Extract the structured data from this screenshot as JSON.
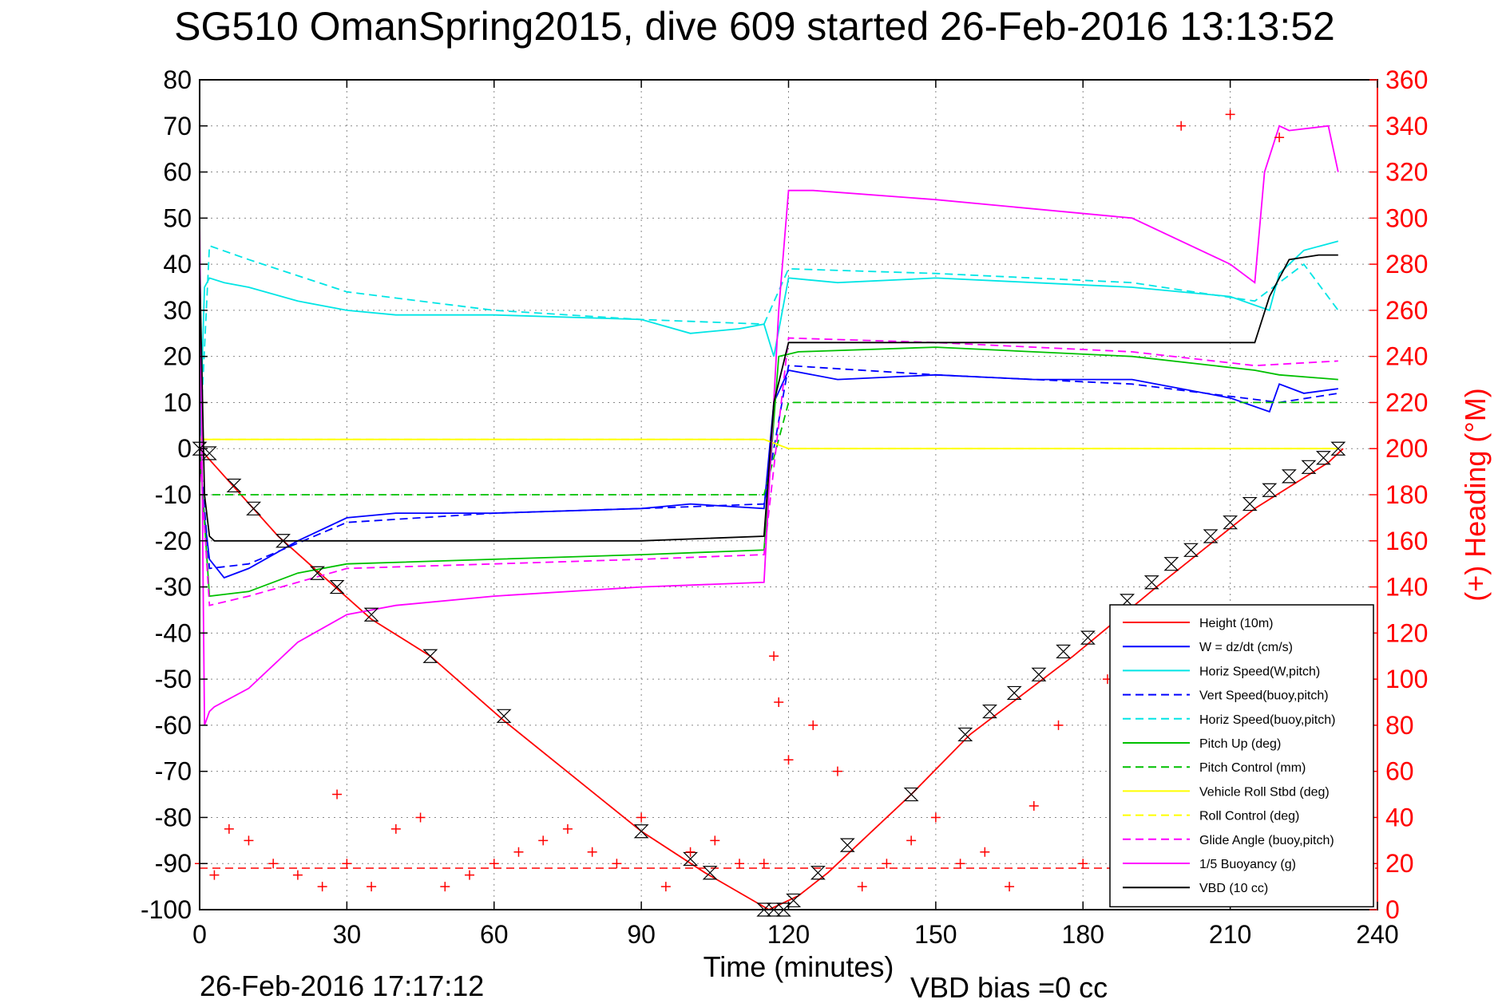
{
  "chart_data": {
    "type": "line",
    "title": "SG510 OmanSpring2015, dive 609 started 26-Feb-2016 13:13:52",
    "xlabel": "Time (minutes)",
    "ylabel_right": "(+) Heading (°M)",
    "xlim": [
      0,
      240
    ],
    "ylim": [
      -100,
      80
    ],
    "ylim_right": [
      0,
      360
    ],
    "xticks": [
      "0",
      "30",
      "60",
      "90",
      "120",
      "150",
      "180",
      "210",
      "240"
    ],
    "yticks_left": [
      "80",
      "70",
      "60",
      "50",
      "40",
      "30",
      "20",
      "10",
      "0",
      "-10",
      "-20",
      "-30",
      "-40",
      "-50",
      "-60",
      "-70",
      "-80",
      "-90",
      "-100"
    ],
    "yticks_right": [
      "360",
      "340",
      "320",
      "300",
      "280",
      "260",
      "240",
      "220",
      "200",
      "180",
      "160",
      "140",
      "120",
      "100",
      "80",
      "60",
      "40",
      "20",
      "0"
    ],
    "grid": true,
    "legend_position": "bottom-right",
    "footer_timestamp": "26-Feb-2016 17:17:12",
    "footer_note": "VBD bias =0 cc",
    "series": [
      {
        "name": "Height (10m)",
        "color": "#ff0000",
        "style": "solid",
        "x": [
          0,
          16,
          35,
          47,
          62,
          90,
          103,
          116,
          118,
          122,
          128,
          145,
          157,
          178,
          195,
          215,
          230,
          233
        ],
        "y": [
          0,
          -19,
          -37,
          -45,
          -59,
          -83,
          -92,
          -100,
          -99,
          -97,
          -92,
          -75,
          -62,
          -45,
          -30,
          -13,
          -3,
          0
        ]
      },
      {
        "name": "W = dz/dt (cm/s)",
        "color": "#0000ff",
        "style": "solid",
        "x": [
          0,
          1,
          2,
          5,
          10,
          20,
          30,
          40,
          60,
          90,
          100,
          115,
          117,
          120,
          130,
          150,
          170,
          190,
          210,
          218,
          220,
          225,
          232
        ],
        "y": [
          0,
          -15,
          -24,
          -28,
          -26,
          -20,
          -15,
          -14,
          -14,
          -13,
          -12,
          -13,
          10,
          17,
          15,
          16,
          15,
          15,
          11,
          8,
          14,
          12,
          13
        ]
      },
      {
        "name": "Horiz Speed(W,pitch)",
        "color": "#00e5e5",
        "style": "solid",
        "x": [
          0,
          1,
          2,
          5,
          10,
          20,
          30,
          40,
          60,
          90,
          100,
          110,
          115,
          117,
          120,
          130,
          150,
          170,
          190,
          210,
          218,
          220,
          225,
          232
        ],
        "y": [
          0,
          35,
          37,
          36,
          35,
          32,
          30,
          29,
          29,
          28,
          25,
          26,
          27,
          20,
          37,
          36,
          37,
          36,
          35,
          33,
          30,
          38,
          43,
          45
        ]
      },
      {
        "name": "Vert Speed(buoy,pitch)",
        "color": "#0000ff",
        "style": "dashed",
        "x": [
          0,
          2,
          10,
          30,
          60,
          90,
          115,
          120,
          150,
          190,
          220,
          232
        ],
        "y": [
          0,
          -26,
          -25,
          -16,
          -14,
          -13,
          -12,
          18,
          16,
          14,
          10,
          12
        ]
      },
      {
        "name": "Horiz Speed(buoy,pitch)",
        "color": "#00e5e5",
        "style": "dashed",
        "x": [
          0,
          2,
          10,
          30,
          60,
          90,
          115,
          120,
          150,
          190,
          215,
          225,
          232
        ],
        "y": [
          0,
          44,
          41,
          34,
          30,
          28,
          27,
          39,
          38,
          36,
          32,
          40,
          30
        ]
      },
      {
        "name": "Pitch Up (deg)",
        "color": "#00c000",
        "style": "solid",
        "x": [
          0,
          2,
          10,
          20,
          30,
          60,
          90,
          115,
          118,
          122,
          150,
          190,
          215,
          220,
          232
        ],
        "y": [
          0,
          -32,
          -31,
          -27,
          -25,
          -24,
          -23,
          -22,
          20,
          21,
          22,
          20,
          17,
          16,
          15
        ]
      },
      {
        "name": "Pitch Control (mm)",
        "color": "#00c000",
        "style": "dashed",
        "x": [
          0,
          5,
          60,
          90,
          115,
          120,
          150,
          190,
          215,
          232
        ],
        "y": [
          -10,
          -10,
          -10,
          -10,
          -10,
          10,
          10,
          10,
          10,
          10
        ]
      },
      {
        "name": "Vehicle Roll Stbd (deg)",
        "color": "#ffff00",
        "style": "solid",
        "x": [
          0,
          5,
          60,
          115,
          120,
          150,
          190,
          215,
          232
        ],
        "y": [
          2,
          2,
          2,
          2,
          0,
          0,
          0,
          0,
          0
        ]
      },
      {
        "name": "Roll Control (deg)",
        "color": "#ffff00",
        "style": "dashed",
        "x": [
          0,
          5,
          60,
          115,
          120,
          150,
          190,
          215,
          232
        ],
        "y": [
          2,
          2,
          2,
          2,
          0,
          0,
          0,
          0,
          0
        ]
      },
      {
        "name": "Glide Angle (buoy,pitch)",
        "color": "#ff00ff",
        "style": "dashed",
        "x": [
          0,
          2,
          10,
          30,
          60,
          90,
          115,
          120,
          150,
          190,
          215,
          232
        ],
        "y": [
          0,
          -34,
          -32,
          -26,
          -25,
          -24,
          -23,
          24,
          23,
          21,
          18,
          19
        ]
      },
      {
        "name": "1/5 Buoyancy (g)",
        "color": "#ff00ff",
        "style": "solid",
        "x": [
          0,
          1,
          2,
          3,
          10,
          20,
          30,
          40,
          60,
          90,
          115,
          118,
          120,
          125,
          150,
          190,
          210,
          215,
          217,
          220,
          222,
          230,
          232
        ],
        "y": [
          50,
          -60,
          -57,
          -56,
          -52,
          -42,
          -36,
          -34,
          -32,
          -30,
          -29,
          30,
          56,
          56,
          54,
          50,
          40,
          36,
          60,
          70,
          69,
          70,
          60
        ]
      },
      {
        "name": "VBD (10 cc)",
        "color": "#000000",
        "style": "solid",
        "x": [
          0,
          1,
          2,
          3,
          10,
          60,
          90,
          115,
          117,
          120,
          150,
          190,
          210,
          215,
          218,
          222,
          228,
          232
        ],
        "y": [
          40,
          -10,
          -19,
          -20,
          -20,
          -20,
          -20,
          -19,
          10,
          23,
          23,
          23,
          23,
          23,
          33,
          41,
          42,
          42
        ]
      }
    ],
    "heading_series": {
      "name": "(+) Heading",
      "color": "#ff0000",
      "marker": "+",
      "x": [
        0,
        3,
        6,
        10,
        15,
        20,
        25,
        28,
        30,
        35,
        40,
        45,
        50,
        55,
        60,
        65,
        70,
        75,
        80,
        85,
        90,
        95,
        100,
        105,
        110,
        115,
        117,
        118,
        120,
        125,
        130,
        135,
        140,
        145,
        150,
        155,
        160,
        165,
        170,
        175,
        180,
        185,
        190,
        200,
        210,
        220
      ],
      "y": [
        20,
        15,
        35,
        30,
        20,
        15,
        10,
        50,
        20,
        10,
        35,
        40,
        10,
        15,
        20,
        25,
        30,
        35,
        25,
        20,
        40,
        10,
        25,
        30,
        20,
        20,
        110,
        90,
        65,
        80,
        60,
        10,
        20,
        30,
        40,
        20,
        25,
        10,
        45,
        80,
        20,
        100,
        30,
        340,
        345,
        335
      ]
    },
    "heading_reference": {
      "name": "heading reference",
      "color": "#ff0000",
      "style": "dashed",
      "y": 18
    },
    "height_markers": {
      "name": "height markers",
      "marker": "hourglass",
      "x": [
        0,
        2,
        7,
        11,
        17,
        24,
        28,
        35,
        47,
        62,
        90,
        100,
        104,
        115,
        117,
        119,
        121,
        126,
        132,
        145,
        156,
        161,
        166,
        171,
        176,
        181,
        189,
        194,
        198,
        202,
        206,
        210,
        214,
        218,
        222,
        226,
        229,
        232
      ],
      "y": [
        0,
        -1,
        -8,
        -13,
        -20,
        -27,
        -30,
        -36,
        -45,
        -58,
        -83,
        -89,
        -92,
        -100,
        -100,
        -100,
        -98,
        -92,
        -86,
        -75,
        -62,
        -57,
        -53,
        -49,
        -44,
        -41,
        -33,
        -29,
        -25,
        -22,
        -19,
        -16,
        -12,
        -9,
        -6,
        -4,
        -2,
        0
      ]
    }
  }
}
